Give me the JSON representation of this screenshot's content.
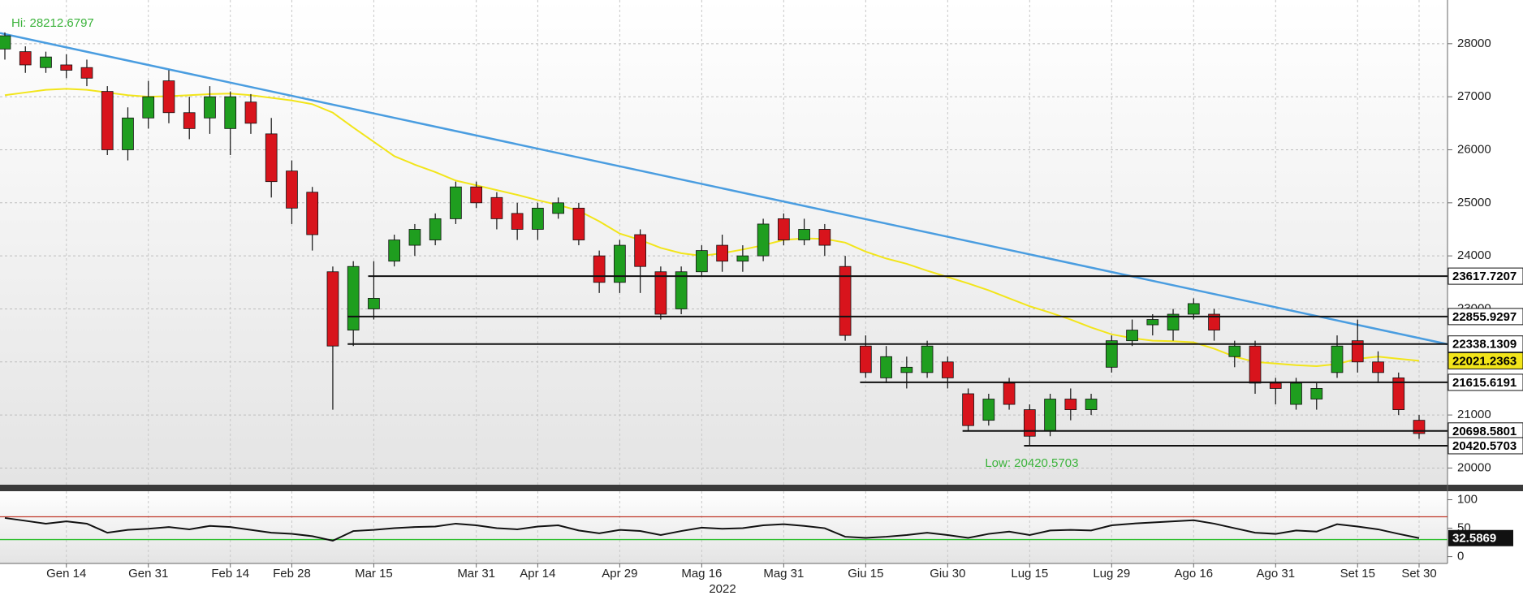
{
  "chart_data": [
    {
      "type": "candlestick",
      "categories": [
        null,
        null,
        null,
        "Gen 14",
        null,
        null,
        null,
        "Gen 31",
        null,
        null,
        null,
        "Feb 14",
        null,
        null,
        "Feb 28",
        null,
        null,
        null,
        "Mar 15",
        null,
        null,
        null,
        null,
        "Mar 31",
        null,
        null,
        "Apr 14",
        null,
        null,
        null,
        "Apr 29",
        null,
        null,
        null,
        "Mag 16",
        null,
        null,
        null,
        "Mag 31",
        null,
        null,
        null,
        "Giu 15",
        null,
        null,
        null,
        "Giu 30",
        null,
        null,
        null,
        "Lug 15",
        null,
        null,
        null,
        "Lug 29",
        null,
        null,
        null,
        "Ago 16",
        null,
        null,
        null,
        "Ago 31",
        null,
        null,
        null,
        "Set 15",
        null,
        null,
        "Set 30"
      ],
      "x_label": "2022",
      "open": [
        27900,
        27850,
        27550,
        27600,
        27550,
        27100,
        26000,
        26600,
        27300,
        26700,
        26600,
        26400,
        26900,
        26300,
        25600,
        25200,
        23700,
        22600,
        23000,
        23900,
        24200,
        24300,
        24700,
        25300,
        25100,
        24800,
        24500,
        24800,
        24900,
        24000,
        23500,
        24400,
        23700,
        23000,
        23700,
        24200,
        23900,
        24000,
        24700,
        24300,
        24500,
        23800,
        22300,
        21700,
        21800,
        21800,
        22000,
        21400,
        20900,
        21600,
        21100,
        20700,
        21300,
        21100,
        21900,
        22400,
        22700,
        22600,
        22900,
        22900,
        22100,
        22300,
        21600,
        21200,
        21300,
        21800,
        22400,
        22000,
        21700,
        20900
      ],
      "high": [
        28212.6797,
        27950,
        27850,
        27800,
        27700,
        27200,
        26800,
        27300,
        27500,
        27000,
        27200,
        27100,
        27050,
        26600,
        25800,
        25300,
        23800,
        23900,
        23900,
        24400,
        24600,
        24800,
        25400,
        25400,
        25200,
        25000,
        25000,
        25100,
        25000,
        24100,
        24300,
        24500,
        23800,
        23800,
        24200,
        24400,
        24200,
        24700,
        24800,
        24700,
        24600,
        24000,
        22500,
        22300,
        22100,
        22400,
        22100,
        21500,
        21400,
        21700,
        21200,
        21400,
        21500,
        21400,
        22500,
        22800,
        22900,
        23000,
        23200,
        23000,
        22400,
        22400,
        21700,
        21700,
        21600,
        22500,
        22800,
        22200,
        21800,
        21000
      ],
      "low": [
        27700,
        27450,
        27450,
        27350,
        27200,
        25900,
        25800,
        26400,
        26500,
        26200,
        26300,
        25900,
        26300,
        25100,
        24600,
        24100,
        21100,
        22300,
        22800,
        23800,
        24000,
        24200,
        24600,
        24900,
        24500,
        24300,
        24300,
        24700,
        24200,
        23300,
        23300,
        23300,
        22800,
        22900,
        23600,
        23700,
        23700,
        23900,
        24200,
        24200,
        24000,
        22400,
        21700,
        21600,
        21500,
        21700,
        21500,
        20700,
        20800,
        21100,
        20420.5703,
        20600,
        20900,
        21000,
        21800,
        22300,
        22500,
        22400,
        22800,
        22400,
        21900,
        21400,
        21200,
        21100,
        21100,
        21700,
        21800,
        21600,
        21000,
        20550
      ],
      "close": [
        28150,
        27600,
        27750,
        27500,
        27350,
        26000,
        26600,
        27000,
        26700,
        26400,
        27000,
        27000,
        26500,
        25400,
        24900,
        24400,
        22300,
        23800,
        23200,
        24300,
        24500,
        24700,
        25300,
        25000,
        24700,
        24500,
        24900,
        25000,
        24300,
        23500,
        24200,
        23800,
        22900,
        23700,
        24100,
        23900,
        24000,
        24600,
        24300,
        24500,
        24200,
        22500,
        21800,
        22100,
        21900,
        22300,
        21700,
        20800,
        21300,
        21200,
        20600,
        21300,
        21100,
        21300,
        22400,
        22600,
        22800,
        22900,
        23100,
        22600,
        22300,
        21600,
        21500,
        21600,
        21500,
        22300,
        22000,
        21800,
        21100,
        20650
      ],
      "up_color": "#1f9e1f",
      "down_color": "#d8141c",
      "moving_average": {
        "color": "#f2e51a",
        "values": [
          27030,
          27080,
          27130,
          27150,
          27130,
          27080,
          27030,
          27000,
          27010,
          27030,
          27050,
          27060,
          27030,
          26980,
          26930,
          26860,
          26700,
          26420,
          26150,
          25880,
          25720,
          25580,
          25420,
          25330,
          25240,
          25150,
          25050,
          24960,
          24850,
          24650,
          24420,
          24300,
          24150,
          24050,
          24000,
          24050,
          24120,
          24200,
          24300,
          24330,
          24320,
          24250,
          24080,
          23950,
          23850,
          23720,
          23600,
          23480,
          23350,
          23200,
          23050,
          22930,
          22800,
          22650,
          22520,
          22450,
          22400,
          22390,
          22370,
          22250,
          22100,
          22000,
          21970,
          21940,
          21920,
          21960,
          22060,
          22100,
          22060,
          22021.2363
        ]
      },
      "trendline": {
        "color": "#4a9de0",
        "values": [
          28180,
          22450
        ]
      },
      "levels": [
        {
          "value": 23617.7207,
          "start_index": 18
        },
        {
          "value": 22855.9297,
          "start_index": 17
        },
        {
          "value": 22338.1309,
          "start_index": 17
        },
        {
          "value": 21615.6191,
          "start_index": 42
        },
        {
          "value": 20698.5801,
          "start_index": 47
        },
        {
          "value": 20420.5703,
          "start_index": 50
        }
      ],
      "annotations": {
        "high": "Hi: 28212.6797",
        "low": "Low: 20420.5703"
      },
      "ylim": [
        19670,
        28824
      ],
      "yticks": [
        20000,
        21000,
        22000,
        23000,
        24000,
        25000,
        26000,
        27000,
        28000
      ],
      "grid": true
    },
    {
      "type": "line",
      "color": "#111111",
      "values": [
        68,
        63,
        58,
        62,
        58,
        42,
        47,
        49,
        52,
        48,
        54,
        52,
        47,
        42,
        40,
        36,
        28,
        45,
        47,
        50,
        52,
        53,
        58,
        55,
        50,
        48,
        53,
        55,
        46,
        41,
        47,
        45,
        38,
        45,
        51,
        49,
        50,
        55,
        57,
        54,
        50,
        35,
        33,
        35,
        38,
        42,
        38,
        33,
        40,
        44,
        38,
        46,
        47,
        46,
        55,
        58,
        60,
        62,
        64,
        58,
        50,
        42,
        40,
        46,
        44,
        57,
        53,
        48,
        40,
        32.5869
      ],
      "hlines": [
        {
          "value": 70,
          "color": "#c0392b"
        },
        {
          "value": 30,
          "color": "#2fbf2f"
        }
      ],
      "ylim": [
        -12,
        115
      ],
      "yticks": [
        0,
        50,
        100
      ]
    }
  ]
}
